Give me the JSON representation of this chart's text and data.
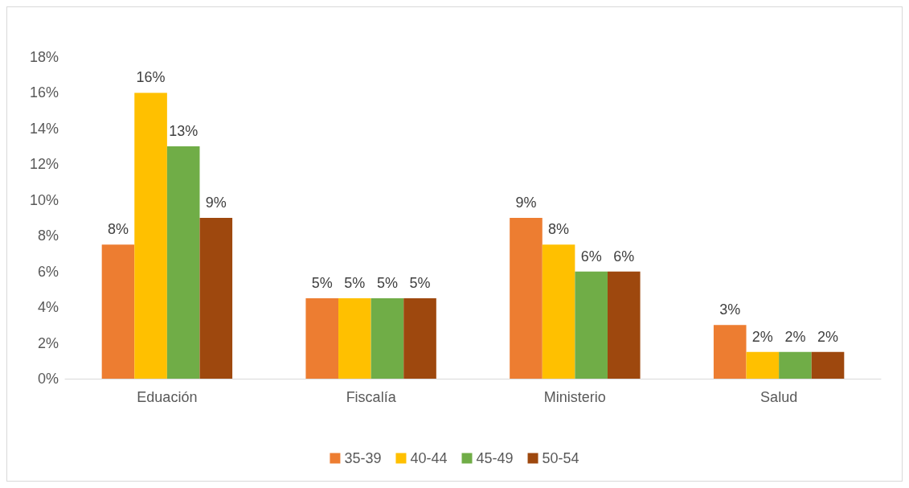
{
  "chart_data": {
    "type": "bar",
    "categories": [
      "Eduación",
      "Fiscalía",
      "Ministerio",
      "Salud"
    ],
    "series": [
      {
        "name": "35-39",
        "color": "#ed7d31",
        "values": [
          7.5,
          4.5,
          9,
          3
        ],
        "value_labels": [
          "8%",
          "5%",
          "9%",
          "3%"
        ]
      },
      {
        "name": "40-44",
        "color": "#ffc000",
        "values": [
          16,
          4.5,
          7.5,
          1.5
        ],
        "value_labels": [
          "16%",
          "5%",
          "8%",
          "2%"
        ]
      },
      {
        "name": "45-49",
        "color": "#70ad47",
        "values": [
          13,
          4.5,
          6,
          1.5
        ],
        "value_labels": [
          "13%",
          "5%",
          "6%",
          "2%"
        ]
      },
      {
        "name": "50-54",
        "color": "#9e480e",
        "values": [
          9,
          4.5,
          6,
          1.5
        ],
        "value_labels": [
          "9%",
          "5%",
          "6%",
          "2%"
        ]
      }
    ],
    "ylim": [
      0,
      18
    ],
    "yticks": [
      {
        "value": 0,
        "label": "0%"
      },
      {
        "value": 2,
        "label": "2%"
      },
      {
        "value": 4,
        "label": "4%"
      },
      {
        "value": 6,
        "label": "6%"
      },
      {
        "value": 8,
        "label": "8%"
      },
      {
        "value": 10,
        "label": "10%"
      },
      {
        "value": 12,
        "label": "12%"
      },
      {
        "value": 14,
        "label": "14%"
      },
      {
        "value": 16,
        "label": "16%"
      },
      {
        "value": 18,
        "label": "18%"
      }
    ],
    "grid": false,
    "legend": "bottom"
  }
}
